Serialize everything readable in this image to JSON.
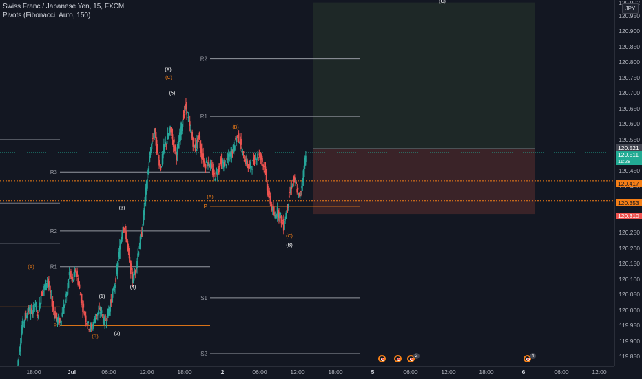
{
  "legend": {
    "symbol_line": "Swiss Franc / Japanese Yen, 15, FXCM",
    "indicator_line": "Pivots (Fibonacci, Auto, 150)"
  },
  "currency": "JPY",
  "colors": {
    "background": "#131722",
    "up": "#26a69a",
    "down": "#ef5350",
    "pivot_orange": "#f57f17",
    "wave_white": "#ffffff",
    "last_price": "#22ab94",
    "target_zone": "#1e2827",
    "stop_zone": "#3a2328"
  },
  "price_axis": {
    "ticks": [
      "120.950",
      "120.900",
      "120.850",
      "120.800",
      "120.750",
      "120.700",
      "120.650",
      "120.600",
      "120.550",
      "120.450",
      "120.400",
      "120.300",
      "120.250",
      "120.200",
      "120.150",
      "120.100",
      "120.050",
      "120.000",
      "119.950",
      "119.900",
      "119.850"
    ],
    "top_label": "120.992",
    "labels": [
      {
        "name": "position-top",
        "value": "120.521",
        "bg": "#434651",
        "color": "#ffffff"
      },
      {
        "name": "last-price",
        "value": "120.511",
        "sub": "11:28",
        "bg": "#22ab94",
        "color": "#ffffff"
      },
      {
        "name": "orange-line-1",
        "value": "120.417",
        "bg": "#f57f17",
        "color": "#131722"
      },
      {
        "name": "orange-line-2",
        "value": "120.353",
        "bg": "#f57f17",
        "color": "#131722"
      },
      {
        "name": "stop-level",
        "value": "120.310",
        "bg": "#ef5350",
        "color": "#ffffff"
      }
    ]
  },
  "time_axis": {
    "ticks": [
      {
        "label": "18:00",
        "bold": false
      },
      {
        "label": "Jul",
        "bold": true
      },
      {
        "label": "06:00",
        "bold": false
      },
      {
        "label": "12:00",
        "bold": false
      },
      {
        "label": "18:00",
        "bold": false
      },
      {
        "label": "2",
        "bold": true
      },
      {
        "label": "06:00",
        "bold": false
      },
      {
        "label": "12:00",
        "bold": false
      },
      {
        "label": "18:00",
        "bold": false
      },
      {
        "label": "5",
        "bold": true
      },
      {
        "label": "06:00",
        "bold": false
      },
      {
        "label": "12:00",
        "bold": false
      },
      {
        "label": "18:00",
        "bold": false
      },
      {
        "label": "6",
        "bold": true
      },
      {
        "label": "06:00",
        "bold": false
      },
      {
        "label": "12:00",
        "bold": false
      }
    ]
  },
  "pivots": {
    "left": [
      {
        "label": "R3",
        "price": 120.445
      },
      {
        "label": "R2",
        "price": 120.255
      },
      {
        "label": "R1",
        "price": 120.14
      },
      {
        "label": "P",
        "price": 119.95
      }
    ],
    "right": [
      {
        "label": "R2",
        "price": 120.81
      },
      {
        "label": "R1",
        "price": 120.625
      },
      {
        "label": "P",
        "price": 120.335
      },
      {
        "label": "S1",
        "price": 120.04
      },
      {
        "label": "S2",
        "price": 119.86
      }
    ]
  },
  "waves": [
    {
      "text": "(A)",
      "color": "orange",
      "price": 120.135
    },
    {
      "text": "(B)",
      "color": "orange",
      "price": 119.91
    },
    {
      "text": "(1)",
      "color": "white",
      "price": 120.04
    },
    {
      "text": "(2)",
      "color": "white",
      "price": 119.92
    },
    {
      "text": "(3)",
      "color": "white",
      "price": 120.325
    },
    {
      "text": "(4)",
      "color": "white",
      "price": 120.07
    },
    {
      "text": "(A)",
      "color": "white",
      "price": 120.77
    },
    {
      "text": "(C)",
      "color": "orange",
      "price": 120.745
    },
    {
      "text": "(5)",
      "color": "white",
      "price": 120.695
    },
    {
      "text": "(B)",
      "color": "orange",
      "price": 120.585
    },
    {
      "text": "(A)",
      "color": "orange",
      "price": 120.36
    },
    {
      "text": "(C)",
      "color": "orange",
      "price": 120.235
    },
    {
      "text": "(B)",
      "color": "white",
      "price": 120.205
    },
    {
      "text": "(C)",
      "color": "white",
      "price": 121.0
    }
  ],
  "events": [
    {
      "count": ""
    },
    {
      "count": ""
    },
    {
      "count": "2"
    },
    {
      "count": "4"
    }
  ],
  "chart_data": {
    "type": "candlestick",
    "symbol": "Swiss Franc / Japanese Yen",
    "interval": "15",
    "ylim": [
      119.82,
      121.0
    ],
    "last_price": 120.511,
    "horizontal_levels": [
      120.521,
      120.417,
      120.353,
      120.31
    ],
    "position_zone": {
      "entry": 120.521,
      "target": 120.992,
      "stop": 120.31
    },
    "price_path": [
      [
        0,
        119.78
      ],
      [
        1,
        119.86
      ],
      [
        2,
        119.95
      ],
      [
        3,
        119.98
      ],
      [
        4,
        120.0
      ],
      [
        5,
        119.99
      ],
      [
        6,
        120.02
      ],
      [
        7,
        119.98
      ],
      [
        8,
        120.05
      ],
      [
        9,
        120.07
      ],
      [
        10,
        120.1
      ],
      [
        11,
        120.05
      ],
      [
        12,
        120.0
      ],
      [
        13,
        119.97
      ],
      [
        14,
        119.96
      ],
      [
        15,
        120.0
      ],
      [
        16,
        120.04
      ],
      [
        17,
        120.12
      ],
      [
        18,
        120.09
      ],
      [
        19,
        120.13
      ],
      [
        20,
        120.08
      ],
      [
        21,
        120.02
      ],
      [
        22,
        119.98
      ],
      [
        23,
        119.95
      ],
      [
        24,
        119.94
      ],
      [
        25,
        119.97
      ],
      [
        26,
        119.99
      ],
      [
        27,
        120.0
      ],
      [
        28,
        119.96
      ],
      [
        29,
        119.98
      ],
      [
        30,
        120.02
      ],
      [
        31,
        120.06
      ],
      [
        32,
        120.12
      ],
      [
        33,
        120.2
      ],
      [
        34,
        120.28
      ],
      [
        35,
        120.24
      ],
      [
        36,
        120.16
      ],
      [
        37,
        120.1
      ],
      [
        38,
        120.13
      ],
      [
        39,
        120.2
      ],
      [
        40,
        120.25
      ],
      [
        41,
        120.36
      ],
      [
        42,
        120.45
      ],
      [
        43,
        120.53
      ],
      [
        44,
        120.58
      ],
      [
        45,
        120.5
      ],
      [
        46,
        120.46
      ],
      [
        47,
        120.52
      ],
      [
        48,
        120.55
      ],
      [
        49,
        120.58
      ],
      [
        50,
        120.54
      ],
      [
        51,
        120.5
      ],
      [
        52,
        120.56
      ],
      [
        53,
        120.62
      ],
      [
        54,
        120.66
      ],
      [
        55,
        120.6
      ],
      [
        56,
        120.55
      ],
      [
        57,
        120.52
      ],
      [
        58,
        120.56
      ],
      [
        59,
        120.5
      ],
      [
        60,
        120.47
      ],
      [
        61,
        120.48
      ],
      [
        62,
        120.46
      ],
      [
        63,
        120.43
      ],
      [
        64,
        120.45
      ],
      [
        65,
        120.48
      ],
      [
        66,
        120.47
      ],
      [
        67,
        120.48
      ],
      [
        68,
        120.5
      ],
      [
        69,
        120.52
      ],
      [
        70,
        120.56
      ],
      [
        71,
        120.55
      ],
      [
        72,
        120.5
      ],
      [
        73,
        120.48
      ],
      [
        74,
        120.46
      ],
      [
        75,
        120.47
      ],
      [
        76,
        120.49
      ],
      [
        77,
        120.5
      ],
      [
        78,
        120.49
      ],
      [
        79,
        120.45
      ],
      [
        80,
        120.38
      ],
      [
        81,
        120.34
      ],
      [
        82,
        120.3
      ],
      [
        83,
        120.32
      ],
      [
        84,
        120.3
      ],
      [
        85,
        120.27
      ],
      [
        86,
        120.33
      ],
      [
        87,
        120.38
      ],
      [
        88,
        120.42
      ],
      [
        89,
        120.4
      ],
      [
        90,
        120.36
      ],
      [
        91,
        120.42
      ],
      [
        92,
        120.51
      ]
    ]
  }
}
